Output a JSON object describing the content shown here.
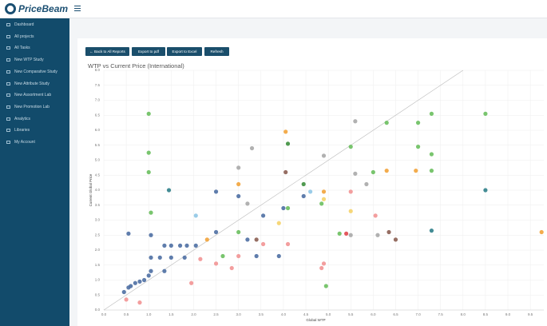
{
  "header": {
    "logo": "PriceBeam"
  },
  "sidebar": {
    "items": [
      "Dashboard",
      "All projects",
      "All Tasks",
      "New WTP Study",
      "New Comparative Study",
      "New Attribute Study",
      "New Assortment Lab",
      "New Promotion Lab",
      "Analytics",
      "Libraries",
      "My Account"
    ]
  },
  "toolbar": {
    "buttons": [
      "← Back to All Reports",
      "Export to pdf",
      "Export to Excel",
      "Refresh"
    ]
  },
  "chart_data": {
    "type": "scatter",
    "title": "WTP vs Current Price (International)",
    "x_label": "Global WTP",
    "y_label": "Current Global Price",
    "xlim": [
      0,
      9.8
    ],
    "ylim": [
      0,
      8
    ],
    "grid": true,
    "reference_line": "y=x",
    "xticks": [
      {
        "value": 0,
        "label": "0.0"
      },
      {
        "value": 0.5,
        "label": "0.5"
      },
      {
        "value": 1,
        "label": "1.0"
      },
      {
        "value": 1.5,
        "label": "1.5"
      },
      {
        "value": 2,
        "label": "2.0"
      },
      {
        "value": 2.5,
        "label": "2.5"
      },
      {
        "value": 3,
        "label": "3.0"
      },
      {
        "value": 3.5,
        "label": "3.5"
      },
      {
        "value": 4,
        "label": "4.0"
      },
      {
        "value": 4.5,
        "label": "4.5"
      },
      {
        "value": 5,
        "label": "5.0"
      },
      {
        "value": 5.5,
        "label": "5.5"
      },
      {
        "value": 6,
        "label": "6.0"
      },
      {
        "value": 6.5,
        "label": "6.5"
      },
      {
        "value": 7,
        "label": "7.0"
      },
      {
        "value": 7.5,
        "label": "7.5"
      },
      {
        "value": 8,
        "label": "8.0"
      },
      {
        "value": 8.5,
        "label": "8.5"
      },
      {
        "value": 9,
        "label": "9.0"
      },
      {
        "value": 9.5,
        "label": "9.5"
      }
    ],
    "yticks": [
      {
        "value": 0,
        "label": "0.0"
      },
      {
        "value": 0.5,
        "label": "0.5"
      },
      {
        "value": 1,
        "label": "1.0"
      },
      {
        "value": 1.5,
        "label": "1.5"
      },
      {
        "value": 2,
        "label": "2.0"
      },
      {
        "value": 2.5,
        "label": "2.5"
      },
      {
        "value": 3,
        "label": "3.0"
      },
      {
        "value": 3.5,
        "label": "3.5"
      },
      {
        "value": 4,
        "label": "4.0"
      },
      {
        "value": 4.5,
        "label": "4.5"
      },
      {
        "value": 5,
        "label": "5.0"
      },
      {
        "value": 5.5,
        "label": "5.5"
      },
      {
        "value": 6,
        "label": "6.0"
      },
      {
        "value": 6.5,
        "label": "6.5"
      },
      {
        "value": 7,
        "label": "7.0"
      },
      {
        "value": 7.5,
        "label": "7.5"
      },
      {
        "value": 8,
        "label": "8.0"
      }
    ],
    "series": [
      {
        "color": "#4e6fa3",
        "x": [
          0.45,
          0.55,
          0.6,
          0.7,
          0.8,
          0.9,
          1.0,
          1.05,
          0.55,
          1.35,
          1.5,
          1.7,
          1.85,
          2.05,
          1.05,
          1.25,
          1.5,
          1.8,
          1.05,
          1.35,
          2.5,
          3.0,
          3.55,
          4.0,
          4.45,
          2.5,
          3.2,
          3.4,
          3.9
        ],
        "values": [
          0.6,
          0.75,
          0.8,
          0.9,
          0.95,
          1.0,
          1.15,
          1.3,
          2.55,
          2.15,
          2.15,
          2.15,
          2.15,
          2.15,
          1.75,
          1.75,
          1.75,
          1.75,
          2.5,
          1.3,
          3.95,
          3.8,
          3.15,
          3.4,
          3.8,
          2.6,
          2.35,
          1.8,
          1.8
        ]
      },
      {
        "color": "#6abf5e",
        "x": [
          1.0,
          1.0,
          1.0,
          1.05,
          6.3,
          7.0,
          7.3,
          8.5,
          7.3,
          7.3,
          7.0,
          4.95,
          5.5,
          3.0,
          2.65,
          4.1,
          4.85,
          5.25,
          6.0
        ],
        "values": [
          6.55,
          5.25,
          4.6,
          3.25,
          6.25,
          6.25,
          6.55,
          6.55,
          5.2,
          4.65,
          5.45,
          0.8,
          5.45,
          2.6,
          1.8,
          3.4,
          3.55,
          2.55,
          4.6
        ]
      },
      {
        "color": "#a9a9a9",
        "x": [
          5.6,
          3.3,
          5.6,
          3.2,
          4.9,
          3.0,
          6.1,
          5.5,
          5.85
        ],
        "values": [
          6.3,
          5.4,
          4.55,
          3.55,
          5.15,
          4.75,
          2.5,
          2.5,
          4.2
        ]
      },
      {
        "color": "#2f7f8a",
        "x": [
          8.5,
          7.3,
          1.45
        ],
        "values": [
          4.0,
          2.65,
          4.0
        ]
      },
      {
        "color": "#f2a33a",
        "x": [
          9.75,
          6.95,
          6.3,
          3.0,
          2.3,
          4.9,
          4.05
        ],
        "values": [
          2.6,
          4.65,
          4.65,
          4.2,
          2.35,
          3.95,
          5.95
        ]
      },
      {
        "color": "#f29494",
        "x": [
          0.5,
          0.8,
          1.95,
          2.5,
          3.0,
          3.55,
          4.1,
          4.9,
          4.85,
          2.85,
          2.15,
          6.05,
          5.5
        ],
        "values": [
          0.35,
          0.25,
          0.9,
          1.55,
          1.8,
          2.2,
          2.2,
          1.55,
          1.4,
          1.4,
          1.7,
          3.15,
          3.95
        ]
      },
      {
        "color": "#8b5e52",
        "x": [
          4.05,
          6.5,
          6.35,
          3.4
        ],
        "values": [
          4.6,
          2.35,
          2.6,
          2.35
        ]
      },
      {
        "color": "#8fc6e6",
        "x": [
          2.05,
          4.6
        ],
        "values": [
          3.15,
          3.95
        ]
      },
      {
        "color": "#f5d36a",
        "x": [
          5.5,
          4.9,
          3.9
        ],
        "values": [
          3.3,
          3.7,
          2.9
        ]
      },
      {
        "color": "#e0474c",
        "x": [
          5.4
        ],
        "values": [
          2.55
        ]
      },
      {
        "color": "#3d8f3d",
        "x": [
          4.1,
          4.45
        ],
        "values": [
          5.55,
          4.2
        ]
      }
    ]
  }
}
